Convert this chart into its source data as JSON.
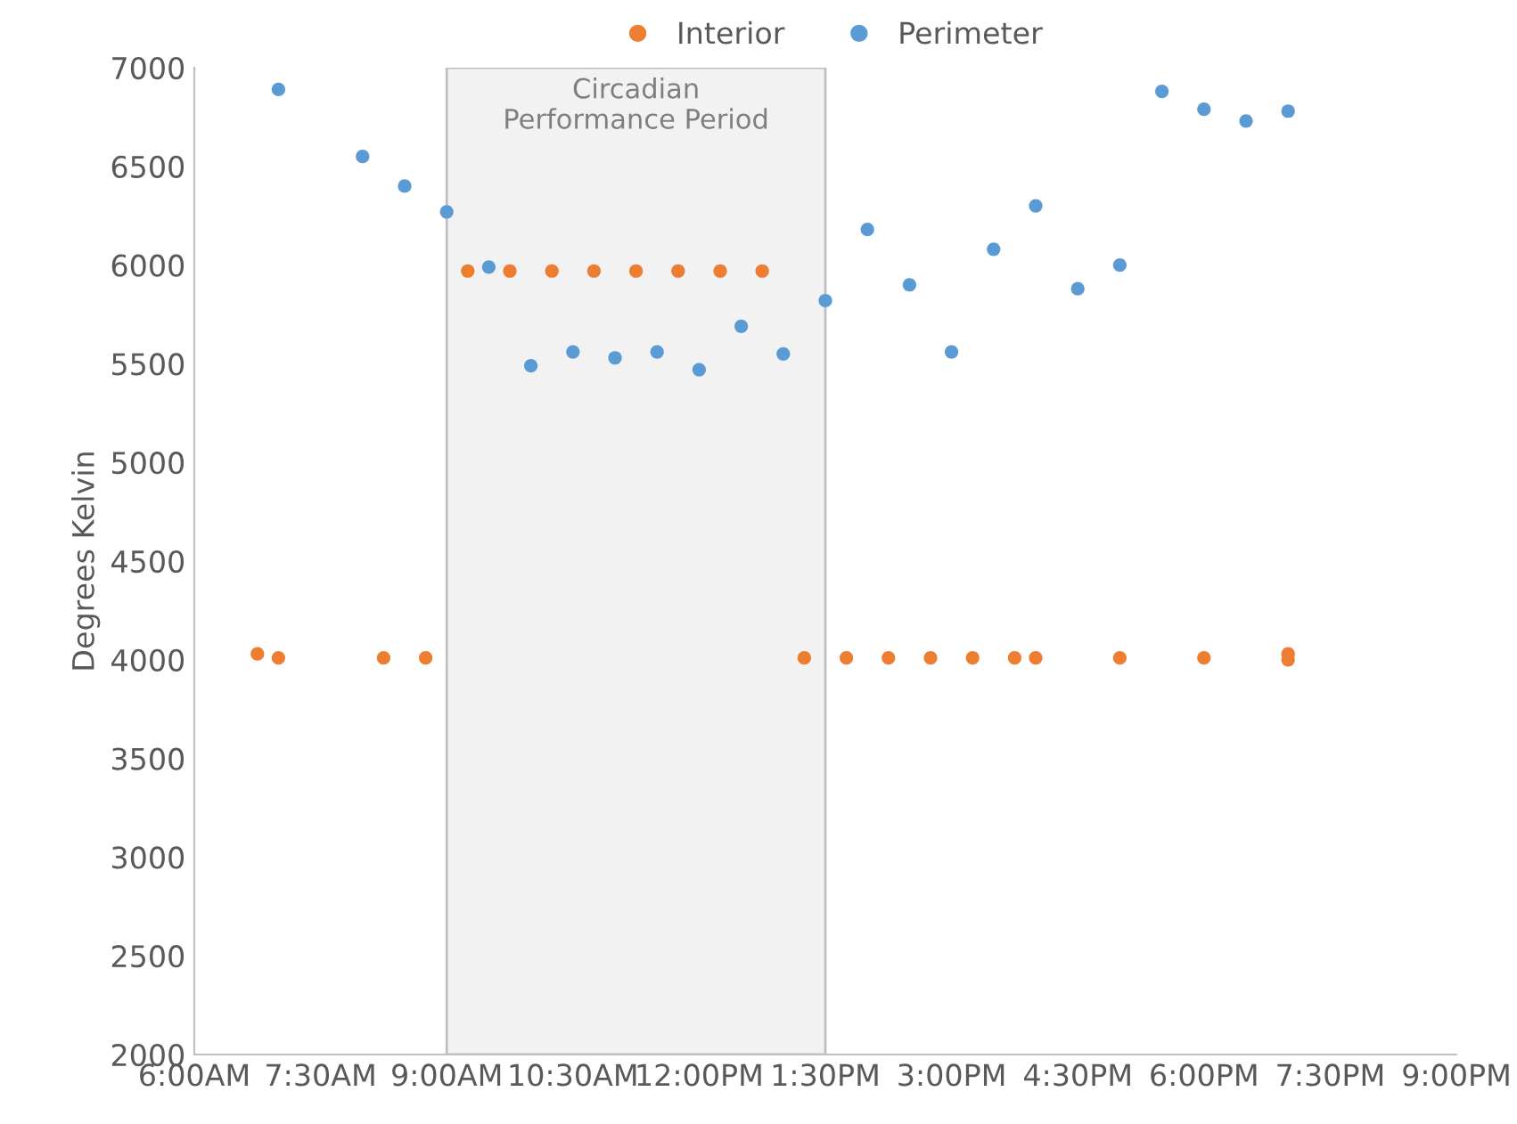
{
  "chart_data": {
    "type": "scatter",
    "ylabel": "Degrees Kelvin",
    "series": [
      {
        "name": "Interior",
        "color": "#ed7d31",
        "x": [
          6.75,
          7.0,
          8.25,
          8.75,
          9.25,
          9.75,
          10.25,
          10.75,
          11.25,
          11.75,
          12.25,
          12.75,
          13.25,
          13.75,
          14.25,
          14.75,
          15.25,
          15.75,
          16.0,
          17.0,
          18.0,
          19.0,
          19.0
        ],
        "values": [
          4030,
          4010,
          4010,
          4010,
          5970,
          5970,
          5970,
          5970,
          5970,
          5970,
          5970,
          5970,
          4010,
          4010,
          4010,
          4010,
          4010,
          4010,
          4010,
          4010,
          4010,
          4000,
          4030
        ]
      },
      {
        "name": "Perimeter",
        "color": "#5b9bd5",
        "x": [
          7.0,
          8.0,
          8.5,
          9.0,
          9.5,
          10.0,
          10.5,
          11.0,
          11.5,
          12.0,
          12.5,
          13.0,
          13.5,
          14.0,
          14.5,
          15.0,
          15.5,
          16.0,
          16.5,
          17.0,
          17.5,
          18.0,
          18.5,
          19.0
        ],
        "values": [
          6890,
          6550,
          6400,
          6270,
          5990,
          5490,
          5560,
          5530,
          5560,
          5470,
          5690,
          5550,
          5820,
          6180,
          5900,
          5560,
          6080,
          6300,
          5880,
          6000,
          6880,
          6790,
          6730,
          6780
        ]
      }
    ],
    "xlim": [
      6,
      21
    ],
    "xticks": [
      {
        "value": 6,
        "label": "6:00AM"
      },
      {
        "value": 7.5,
        "label": "7:30AM"
      },
      {
        "value": 9,
        "label": "9:00AM"
      },
      {
        "value": 10.5,
        "label": "10:30AM"
      },
      {
        "value": 12,
        "label": "12:00PM"
      },
      {
        "value": 13.5,
        "label": "1:30PM"
      },
      {
        "value": 15,
        "label": "3:00PM"
      },
      {
        "value": 16.5,
        "label": "4:30PM"
      },
      {
        "value": 18,
        "label": "6:00PM"
      },
      {
        "value": 19.5,
        "label": "7:30PM"
      },
      {
        "value": 21,
        "label": "9:00PM"
      }
    ],
    "ylim": [
      2000,
      7000
    ],
    "yticks": [
      2000,
      2500,
      3000,
      3500,
      4000,
      4500,
      5000,
      5500,
      6000,
      6500,
      7000
    ],
    "bands": [
      {
        "axis": "x",
        "from": 9,
        "to": 13.5,
        "label": "Circadian\nPerformance Period",
        "color": "#f2f2f2"
      }
    ],
    "grid": false,
    "legend": "top",
    "marker": "circle"
  }
}
